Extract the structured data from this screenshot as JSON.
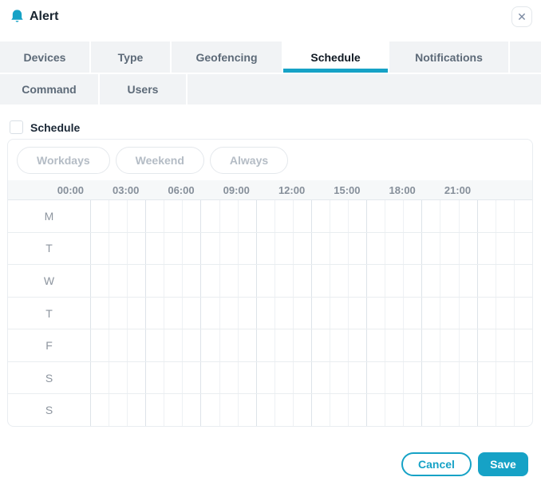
{
  "header": {
    "title": "Alert",
    "close_glyph": "✕"
  },
  "tabs": {
    "row1": [
      {
        "label": "Devices",
        "active": false
      },
      {
        "label": "Type",
        "active": false
      },
      {
        "label": "Geofencing",
        "active": false
      },
      {
        "label": "Schedule",
        "active": true
      },
      {
        "label": "Notifications",
        "active": false
      }
    ],
    "row2": [
      {
        "label": "Command",
        "active": false
      },
      {
        "label": "Users",
        "active": false
      }
    ]
  },
  "schedule": {
    "checkbox_label": "Schedule",
    "checkbox_checked": false,
    "preset_buttons": [
      "Workdays",
      "Weekend",
      "Always"
    ],
    "time_labels": [
      "00:00",
      "03:00",
      "06:00",
      "09:00",
      "12:00",
      "15:00",
      "18:00",
      "21:00"
    ],
    "day_labels": [
      "M",
      "T",
      "W",
      "T",
      "F",
      "S",
      "S"
    ],
    "hours_per_day": 24,
    "selected_cells": []
  },
  "footer": {
    "cancel_label": "Cancel",
    "save_label": "Save"
  },
  "colors": {
    "accent": "#16a2c6"
  }
}
